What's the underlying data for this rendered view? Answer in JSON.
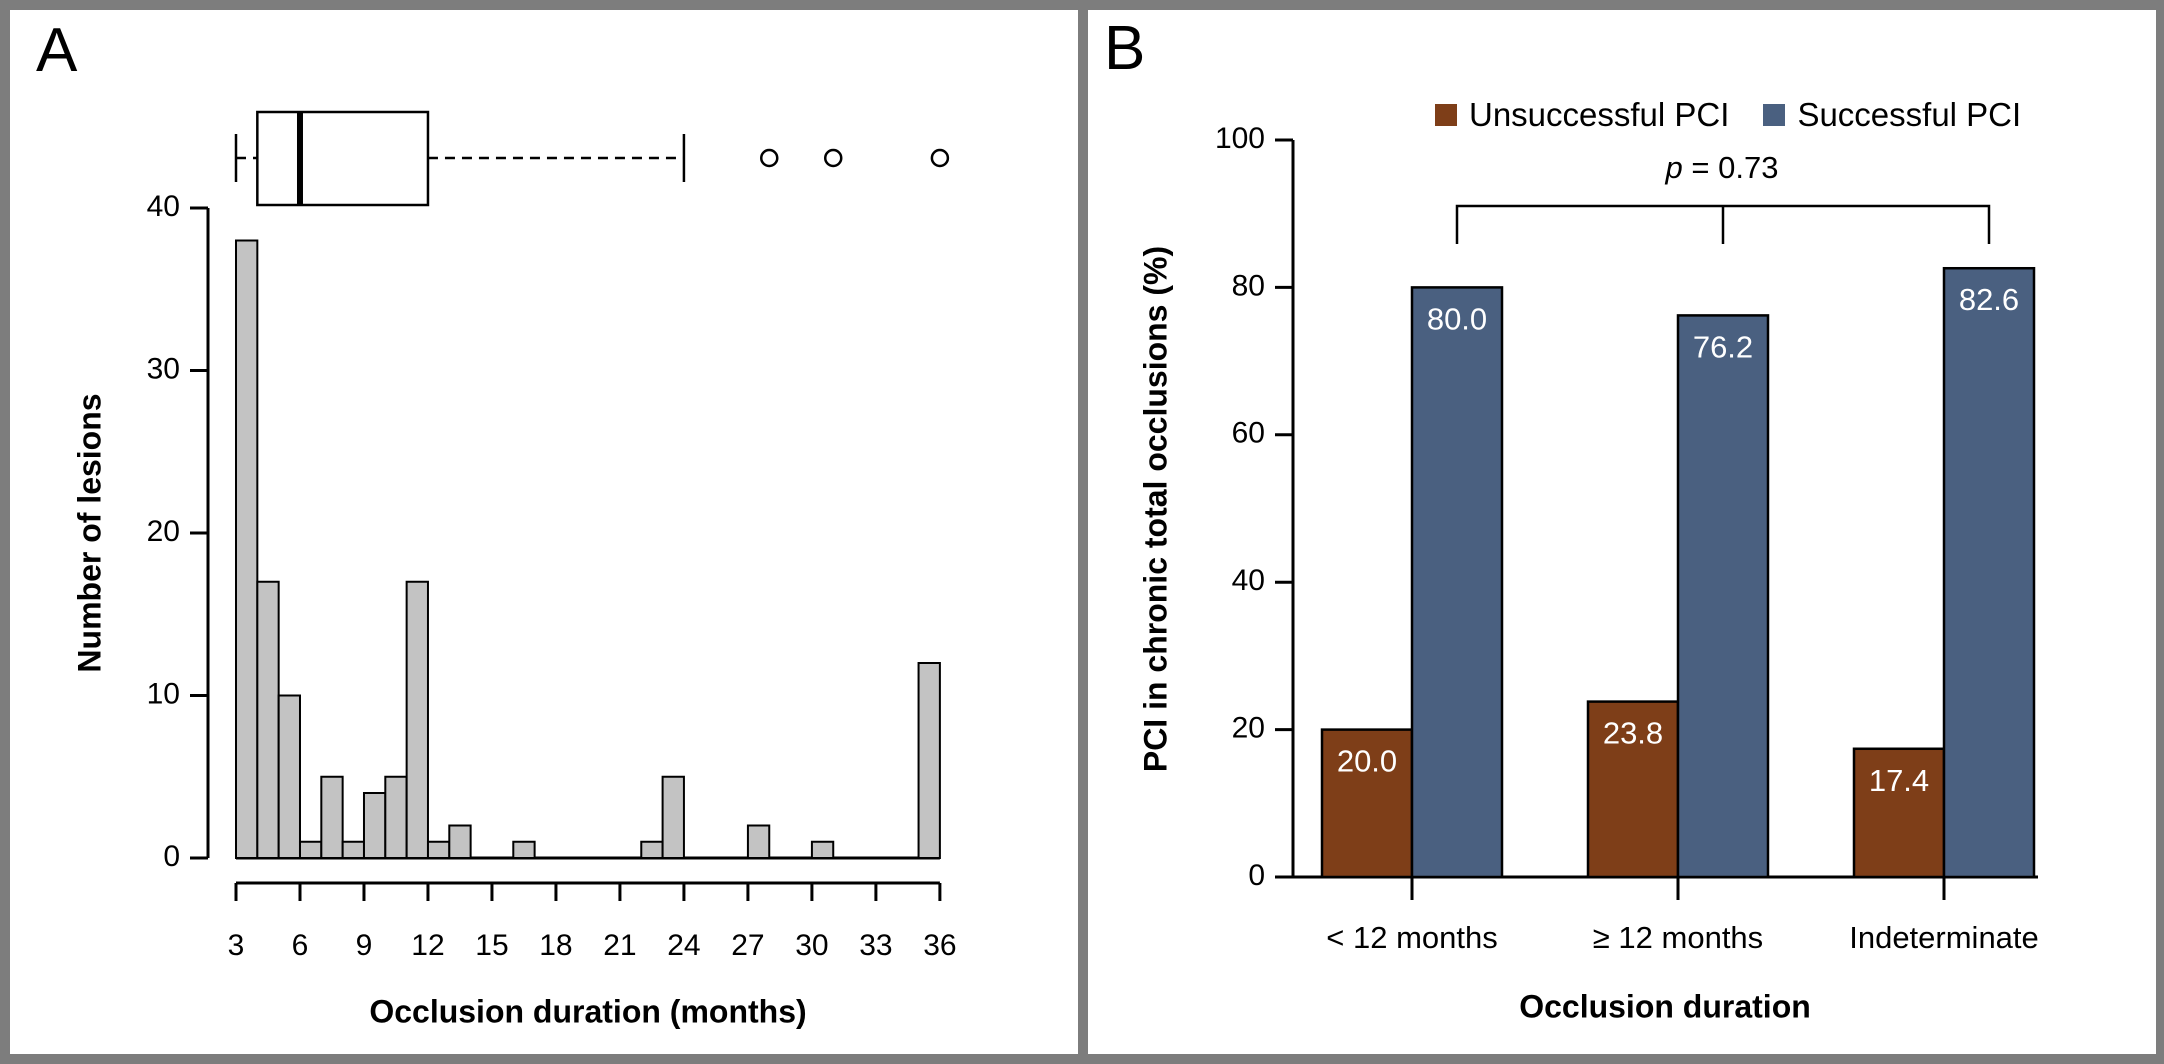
{
  "figure": {
    "frame_color": "#7d7d7d",
    "panel_background": "#ffffff"
  },
  "panelA": {
    "letter": "A",
    "ylabel": "Number of lesions",
    "xlabel": "Occlusion duration (months)"
  },
  "panelB": {
    "letter": "B",
    "ylabel": "PCI in chronic total occlusions (%)",
    "xlabel": "Occlusion duration",
    "pvalue_var": "p",
    "pvalue_rest": " = 0.73"
  },
  "chart_data": [
    {
      "id": "A",
      "type": "bar",
      "subtype": "histogram-with-boxplot",
      "title": "",
      "xlabel": "Occlusion duration (months)",
      "ylabel": "Number of lesions",
      "xlim": [
        3,
        36
      ],
      "ylim": [
        0,
        40
      ],
      "xticks": [
        3,
        6,
        9,
        12,
        15,
        18,
        21,
        24,
        27,
        30,
        33,
        36
      ],
      "yticks": [
        0,
        10,
        20,
        30,
        40
      ],
      "grid": false,
      "bin_width_months": 1,
      "bin_starts": [
        3,
        4,
        5,
        6,
        7,
        8,
        9,
        10,
        11,
        12,
        13,
        14,
        15,
        16,
        17,
        18,
        19,
        20,
        21,
        22,
        23,
        24,
        25,
        26,
        27,
        28,
        29,
        30,
        31,
        32,
        33,
        34,
        35
      ],
      "counts": [
        38,
        17,
        10,
        1,
        5,
        1,
        4,
        5,
        17,
        1,
        2,
        0,
        0,
        1,
        0,
        0,
        0,
        0,
        0,
        1,
        5,
        0,
        0,
        0,
        2,
        0,
        0,
        1,
        0,
        0,
        0,
        0,
        12
      ],
      "bar_fill": "#c3c3c3",
      "bar_stroke": "#000000",
      "boxplot": {
        "whisker_low": 3,
        "q1": 4,
        "median": 6,
        "q3": 12,
        "whisker_high": 24,
        "outliers": [
          28,
          31,
          36
        ]
      }
    },
    {
      "id": "B",
      "type": "bar",
      "subtype": "grouped-vertical",
      "title": "",
      "xlabel": "Occlusion duration",
      "ylabel": "PCI in chronic total occlusions (%)",
      "ylim": [
        0,
        100
      ],
      "yticks": [
        0,
        20,
        40,
        60,
        80,
        100
      ],
      "grid": false,
      "legend_position": "top",
      "categories": [
        "< 12 months",
        "≥ 12 months",
        "Indeterminate"
      ],
      "series": [
        {
          "name": "Unsuccessful PCI",
          "color": "#7E3E18",
          "values": [
            20.0,
            23.8,
            17.4
          ],
          "labels": [
            "20.0",
            "23.8",
            "17.4"
          ]
        },
        {
          "name": "Successful PCI",
          "color": "#4A6080",
          "values": [
            80.0,
            76.2,
            82.6
          ],
          "labels": [
            "80.0",
            "76.2",
            "82.6"
          ]
        }
      ],
      "value_label_color": "#ffffff",
      "annotation": {
        "text": "p = 0.73",
        "style": "bracket over groups 1-3"
      }
    }
  ]
}
